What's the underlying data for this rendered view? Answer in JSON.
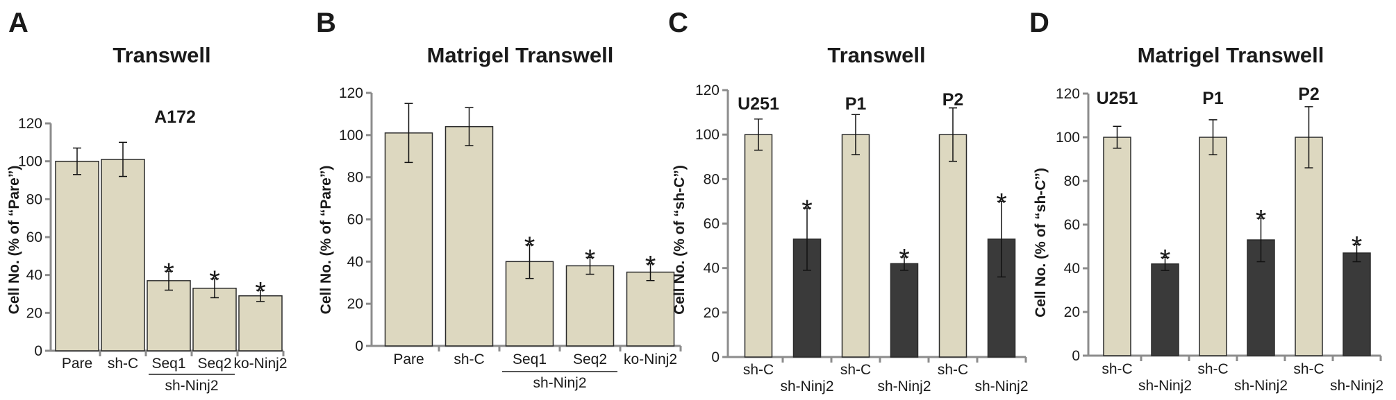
{
  "colors": {
    "light_bar": "#ddd8c0",
    "dark_bar": "#3a3a3a",
    "axis": "#8c8c8c",
    "bar_edge": "#2a2a2a"
  },
  "chart_data": [
    {
      "type": "bar",
      "panel_letter": "A",
      "title": "Transwell",
      "subtitle": "A172",
      "ylabel": "Cell No. (% of “Pare”)",
      "ylim": [
        0,
        120
      ],
      "yticks": [
        "0",
        "20",
        "40",
        "60",
        "80",
        "100",
        "120"
      ],
      "categories": [
        "Pare",
        "sh-C",
        "Seq1",
        "Seq2",
        "ko-Ninj2"
      ],
      "values": [
        100,
        101,
        37,
        33,
        29
      ],
      "errors": [
        7,
        9,
        5,
        5,
        3
      ],
      "significant": [
        "",
        "",
        "*",
        "*",
        "*"
      ],
      "bar_tones": [
        "light",
        "light",
        "light",
        "light",
        "light"
      ],
      "group_label": {
        "text": "sh-Ninj2",
        "from": 2,
        "to": 3
      },
      "group_heads": []
    },
    {
      "type": "bar",
      "panel_letter": "B",
      "title": "Matrigel Transwell",
      "subtitle": "",
      "ylabel": "Cell No. (% of “Pare”)",
      "ylim": [
        0,
        120
      ],
      "yticks": [
        "0",
        "20",
        "40",
        "60",
        "80",
        "100",
        "120"
      ],
      "categories": [
        "Pare",
        "sh-C",
        "Seq1",
        "Seq2",
        "ko-Ninj2"
      ],
      "values": [
        101,
        104,
        40,
        38,
        35
      ],
      "errors": [
        14,
        9,
        8,
        4,
        4
      ],
      "significant": [
        "",
        "",
        "*",
        "*",
        "*"
      ],
      "bar_tones": [
        "light",
        "light",
        "light",
        "light",
        "light"
      ],
      "group_label": {
        "text": "sh-Ninj2",
        "from": 2,
        "to": 3
      },
      "group_heads": []
    },
    {
      "type": "bar",
      "panel_letter": "C",
      "title": "Transwell",
      "subtitle": "",
      "ylabel": "Cell No. (% of “sh-C”)",
      "ylim": [
        0,
        120
      ],
      "yticks": [
        "0",
        "20",
        "40",
        "60",
        "80",
        "100",
        "120"
      ],
      "categories": [
        "sh-C",
        "sh-Ninj2",
        "sh-C",
        "sh-Ninj2",
        "sh-C",
        "sh-Ninj2"
      ],
      "values": [
        100,
        53,
        100,
        42,
        100,
        53
      ],
      "errors": [
        7,
        14,
        9,
        3,
        12,
        17
      ],
      "significant": [
        "",
        "*",
        "",
        "*",
        "",
        "*"
      ],
      "bar_tones": [
        "light",
        "dark",
        "light",
        "dark",
        "light",
        "dark"
      ],
      "group_label": null,
      "group_heads": [
        "U251",
        "P1",
        "P2"
      ]
    },
    {
      "type": "bar",
      "panel_letter": "D",
      "title": "Matrigel Transwell",
      "subtitle": "",
      "ylabel": "Cell No. (% of “sh-C”)",
      "ylim": [
        0,
        120
      ],
      "yticks": [
        "0",
        "20",
        "40",
        "60",
        "80",
        "100",
        "120"
      ],
      "categories": [
        "sh-C",
        "sh-Ninj2",
        "sh-C",
        "sh-Ninj2",
        "sh-C",
        "sh-Ninj2"
      ],
      "values": [
        100,
        42,
        100,
        53,
        100,
        47
      ],
      "errors": [
        5,
        3,
        8,
        10,
        14,
        4
      ],
      "significant": [
        "",
        "*",
        "",
        "*",
        "",
        "*"
      ],
      "bar_tones": [
        "light",
        "dark",
        "light",
        "dark",
        "light",
        "dark"
      ],
      "group_label": null,
      "group_heads": [
        "U251",
        "P1",
        "P2"
      ]
    }
  ]
}
